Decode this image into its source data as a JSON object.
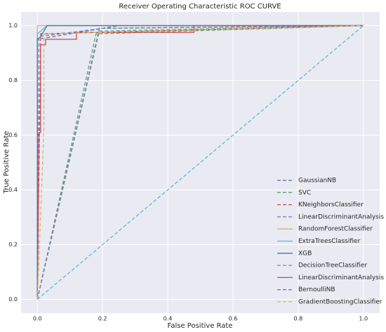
{
  "chart_data": {
    "type": "line",
    "title": "Receiver Operating Characteristic ROC CURVE",
    "x_label": "False Positive Rate",
    "y_label": "True Positive Rate",
    "xlim": [
      -0.05,
      1.05
    ],
    "ylim": [
      -0.05,
      1.05
    ],
    "xticks": [
      {
        "value": 0,
        "label": "0.0"
      },
      0.2,
      0.4,
      0.6,
      0.8,
      {
        "value": 1,
        "label": "1.0"
      }
    ],
    "yticks": [
      {
        "value": 0,
        "label": "0.0"
      },
      0.2,
      0.4,
      0.6,
      0.8,
      {
        "value": 1,
        "label": "1.0"
      }
    ],
    "grid": true,
    "legend": "lower right",
    "background": "#eaeaf2",
    "series": [
      {
        "name": "GaussianNB",
        "color": "#4c72b0",
        "dash": true,
        "x": [
          0,
          0,
          0.25,
          1
        ],
        "values": [
          0,
          0.95,
          1,
          1
        ]
      },
      {
        "name": "SVC",
        "color": "#55a868",
        "dash": true,
        "x": [
          0,
          0.19,
          1
        ],
        "values": [
          0,
          0.98,
          1
        ]
      },
      {
        "name": "KNeighborsClassifier",
        "color": "#c44e52",
        "dash": true,
        "x": [
          0,
          0.01,
          0.01,
          1
        ],
        "values": [
          0,
          0.95,
          0.97,
          1
        ]
      },
      {
        "name": "LinearDiscriminantAnalysis",
        "color": "#8172b2",
        "dash": true,
        "x": [
          0,
          0.005,
          0.2,
          1
        ],
        "values": [
          0,
          0.96,
          0.99,
          1
        ]
      },
      {
        "name": "RandomForestClassifier",
        "color": "#ccb974",
        "dash": false,
        "x": [
          0,
          0,
          1
        ],
        "values": [
          0,
          1,
          1
        ]
      },
      {
        "name": "ExtraTreesClassifier",
        "color": "#64b5cd",
        "dash": false,
        "x": [
          0,
          0,
          0.03,
          1
        ],
        "values": [
          0,
          0.97,
          1,
          1
        ]
      },
      {
        "name": "XGB",
        "color": "#4c72b0",
        "dash": false,
        "x": [
          0,
          0,
          0.01,
          0.03,
          1
        ],
        "values": [
          0,
          0.95,
          0.96,
          1,
          1
        ]
      },
      {
        "name": "DecisionTreeClassifier",
        "color": "#55a868",
        "dash": true,
        "x": [
          0,
          0.18,
          1
        ],
        "values": [
          0,
          0.97,
          1
        ]
      },
      {
        "name": "LinearDiscriminantAnalysis",
        "color": "#c44e52",
        "dash": false,
        "x": [
          0,
          0.005,
          0.01,
          0.01,
          0.025,
          0.025,
          0.12,
          0.12,
          0.48,
          0.48,
          1
        ],
        "values": [
          0,
          0.61,
          0.61,
          0.93,
          0.93,
          0.95,
          0.95,
          0.975,
          0.975,
          1,
          1
        ]
      },
      {
        "name": "BernoulliNB",
        "color": "#8172b2",
        "dash": true,
        "x": [
          0,
          0.19,
          1
        ],
        "values": [
          0,
          0.99,
          1
        ]
      },
      {
        "name": "GradientBoostingClassifier",
        "color": "#ccb974",
        "dash": true,
        "x": [
          0,
          0.02,
          0.02,
          1
        ],
        "values": [
          0,
          0.62,
          0.97,
          1
        ]
      }
    ],
    "reference_line": {
      "color": "#64b5cd",
      "dash": true,
      "x": [
        0,
        1
      ],
      "values": [
        0,
        1
      ]
    }
  }
}
